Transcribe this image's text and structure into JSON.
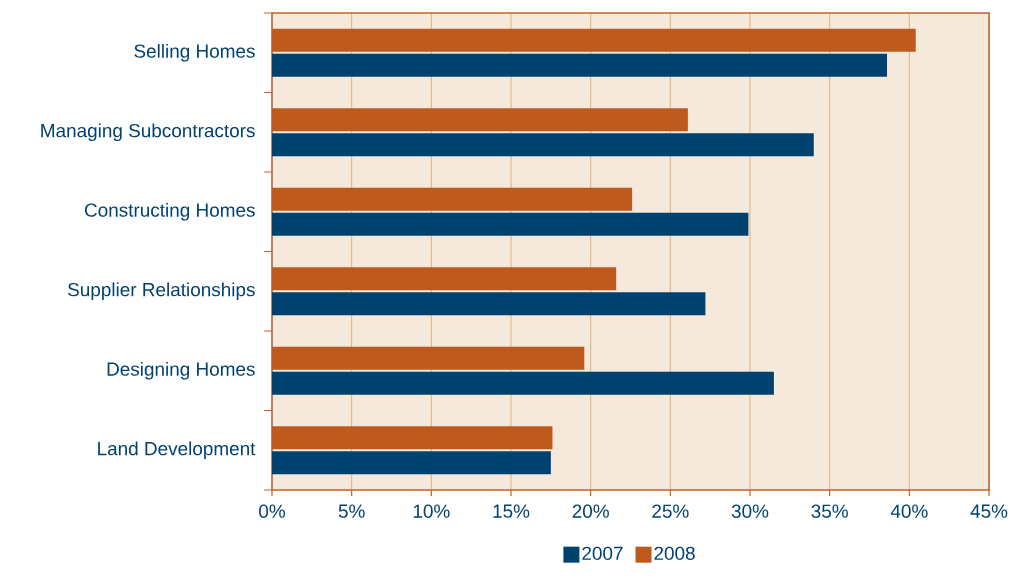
{
  "chart_data": {
    "type": "bar",
    "orientation": "horizontal",
    "categories": [
      "Selling Homes",
      "Managing Subcontractors",
      "Constructing Homes",
      "Supplier Relationships",
      "Designing Homes",
      "Land Development"
    ],
    "series": [
      {
        "name": "2007",
        "color": "#00426f",
        "values": [
          38.6,
          34.0,
          29.9,
          27.2,
          31.5,
          17.5
        ]
      },
      {
        "name": "2008",
        "color": "#bf5a1e",
        "values": [
          40.4,
          26.1,
          22.6,
          21.6,
          19.6,
          17.6
        ]
      }
    ],
    "xlim": [
      0,
      45
    ],
    "xticks": [
      {
        "value": 0,
        "label": "0%"
      },
      {
        "value": 5,
        "label": "5%"
      },
      {
        "value": 10,
        "label": "10%"
      },
      {
        "value": 15,
        "label": "15%"
      },
      {
        "value": 20,
        "label": "20%"
      },
      {
        "value": 25,
        "label": "25%"
      },
      {
        "value": 30,
        "label": "30%"
      },
      {
        "value": 35,
        "label": "35%"
      },
      {
        "value": 40,
        "label": "40%"
      },
      {
        "value": 45,
        "label": "45%"
      }
    ],
    "grid": "x",
    "legend": "bottom"
  }
}
